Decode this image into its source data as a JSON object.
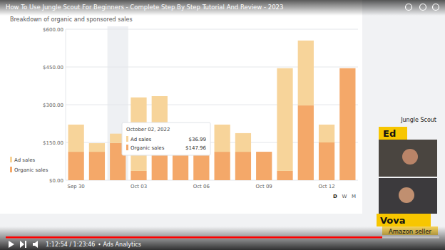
{
  "chart_data": {
    "type": "bar",
    "title": "Breakdown of organic and sponsored sales",
    "categories": [
      "Sep 30",
      null,
      null,
      "Oct 03",
      null,
      null,
      "Oct 06",
      null,
      null,
      "Oct 09",
      null,
      null,
      "Oct 12",
      null
    ],
    "series": [
      {
        "name": "Ad sales",
        "color": "#f7d49a",
        "values": [
          108,
          34,
          36.99,
          292,
          221,
          0,
          0,
          108,
          74,
          0,
          408,
          258,
          71,
          0
        ]
      },
      {
        "name": "Organic sales",
        "color": "#f4a869",
        "values": [
          113,
          113,
          147.96,
          37,
          113,
          113,
          113,
          113,
          113,
          113,
          37,
          297,
          150,
          445
        ]
      }
    ],
    "stacked": true,
    "ylim": [
      0,
      600
    ],
    "yticks": [
      {
        "value": 0,
        "label": "$0.00"
      },
      {
        "value": 150,
        "label": "$150.00"
      },
      {
        "value": 300,
        "label": "$300.00"
      },
      {
        "value": 450,
        "label": "$450.00"
      },
      {
        "value": 600,
        "label": "$600.00"
      }
    ],
    "grid": true,
    "legend": "left",
    "tooltip": {
      "title": "October 02, 2022",
      "rows": [
        {
          "name": "Ad sales",
          "label": "$36.99"
        },
        {
          "name": "Organic sales",
          "label": "$147.96"
        }
      ]
    }
  },
  "page": {
    "video_title": "How To Use Jungle Scout For Beginners - Complete Step By Step Tutorial And Review - 2023",
    "period_buttons": [
      "D",
      "W",
      "M"
    ],
    "brand": "Jungle Scout",
    "hosts": [
      {
        "name": "Ed"
      },
      {
        "name": "Vova",
        "role": "Amazon seller"
      }
    ],
    "time": "1:12:54 / 1:23:46",
    "chapter": "Ads Analytics"
  }
}
